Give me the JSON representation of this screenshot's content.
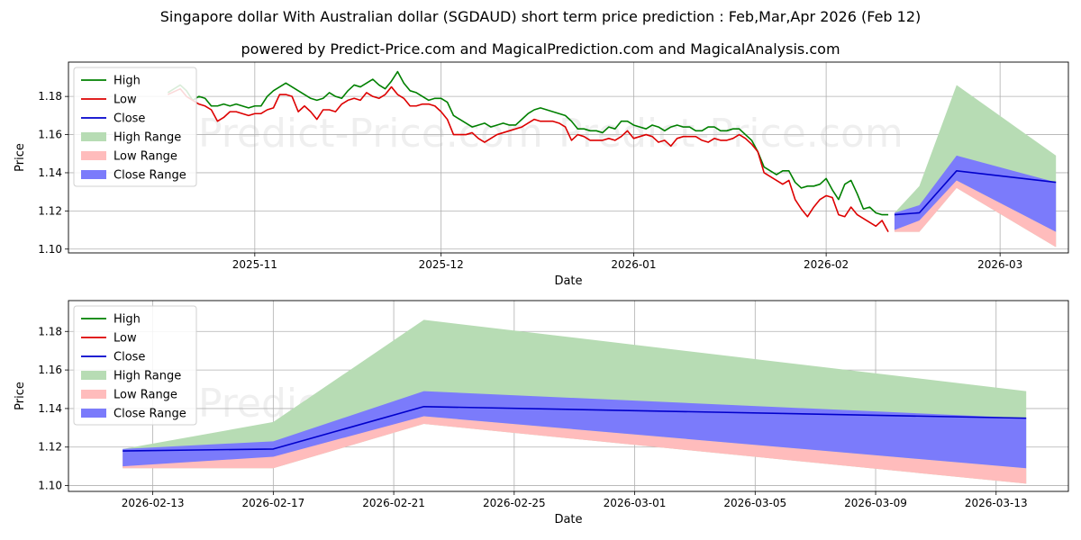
{
  "title": "Singapore dollar With Australian dollar (SGDAUD) short term price prediction : Feb,Mar,Apr 2026 (Feb 12)",
  "subtitle": "powered by Predict-Price.com and MagicalPrediction.com and MagicalAnalysis.com",
  "watermark": "Predict-Price.com",
  "colors": {
    "high": "#008000",
    "low": "#dd0000",
    "close": "#0000cc",
    "high_range": "#b7dcb4",
    "low_range": "#ffbcbc",
    "close_range": "#7b7bfb"
  },
  "chart_data": [
    {
      "type": "line",
      "name": "top",
      "xlabel": "Date",
      "ylabel": "Price",
      "ylim": [
        1.098,
        1.198
      ],
      "xlim": [
        0,
        161
      ],
      "x_ticks": [
        {
          "x": 30,
          "label": "2025-11"
        },
        {
          "x": 60,
          "label": "2025-12"
        },
        {
          "x": 91,
          "label": "2026-01"
        },
        {
          "x": 122,
          "label": "2026-02"
        },
        {
          "x": 150,
          "label": "2026-03"
        }
      ],
      "y_ticks": [
        1.1,
        1.12,
        1.14,
        1.16,
        1.18
      ],
      "y_tick_labels": [
        "1.10",
        "1.12",
        "1.14",
        "1.16",
        "1.18"
      ],
      "grid": true,
      "legend": {
        "position": "top-left",
        "entries": [
          {
            "label": "High",
            "kind": "line",
            "color": "high"
          },
          {
            "label": "Low",
            "kind": "line",
            "color": "low"
          },
          {
            "label": "Close",
            "kind": "line",
            "color": "close"
          },
          {
            "label": "High Range",
            "kind": "patch",
            "color": "high_range"
          },
          {
            "label": "Low Range",
            "kind": "patch",
            "color": "low_range"
          },
          {
            "label": "Close Range",
            "kind": "patch",
            "color": "close_range"
          }
        ]
      },
      "high": {
        "x": [
          16,
          18,
          19,
          20,
          21,
          22,
          23,
          24,
          25,
          26,
          27,
          28,
          29,
          30,
          31,
          32,
          33,
          34,
          35,
          36,
          37,
          38,
          39,
          40,
          41,
          42,
          43,
          44,
          45,
          46,
          47,
          48,
          49,
          50,
          51,
          52,
          53,
          54,
          55,
          56,
          57,
          58,
          59,
          60,
          61,
          62,
          63,
          64,
          65,
          66,
          67,
          68,
          69,
          70,
          71,
          72,
          73,
          74,
          75,
          76,
          77,
          78,
          79,
          80,
          81,
          82,
          83,
          84,
          85,
          86,
          87,
          88,
          89,
          90,
          91,
          92,
          93,
          94,
          95,
          96,
          97,
          98,
          99,
          100,
          101,
          102,
          103,
          104,
          105,
          106,
          107,
          108,
          109,
          110,
          111,
          112,
          113,
          114,
          115,
          116,
          117,
          118,
          119,
          120,
          121,
          122,
          123,
          124,
          125,
          126,
          127,
          128,
          129,
          130,
          131,
          132
        ],
        "y": [
          1.182,
          1.186,
          1.183,
          1.178,
          1.18,
          1.179,
          1.175,
          1.175,
          1.176,
          1.175,
          1.176,
          1.175,
          1.174,
          1.175,
          1.175,
          1.18,
          1.183,
          1.185,
          1.187,
          1.185,
          1.183,
          1.181,
          1.179,
          1.178,
          1.179,
          1.182,
          1.18,
          1.179,
          1.183,
          1.186,
          1.185,
          1.187,
          1.189,
          1.186,
          1.184,
          1.188,
          1.193,
          1.187,
          1.183,
          1.182,
          1.18,
          1.178,
          1.179,
          1.179,
          1.177,
          1.17,
          1.168,
          1.166,
          1.164,
          1.165,
          1.166,
          1.164,
          1.165,
          1.166,
          1.165,
          1.165,
          1.168,
          1.171,
          1.173,
          1.174,
          1.173,
          1.172,
          1.171,
          1.17,
          1.167,
          1.163,
          1.163,
          1.162,
          1.162,
          1.161,
          1.164,
          1.163,
          1.167,
          1.167,
          1.165,
          1.164,
          1.163,
          1.165,
          1.164,
          1.162,
          1.164,
          1.165,
          1.164,
          1.164,
          1.162,
          1.162,
          1.164,
          1.164,
          1.162,
          1.162,
          1.163,
          1.163,
          1.16,
          1.157,
          1.151,
          1.143,
          1.141,
          1.139,
          1.141,
          1.141,
          1.135,
          1.132,
          1.133,
          1.133,
          1.134,
          1.137,
          1.131,
          1.126,
          1.134,
          1.136,
          1.129,
          1.121,
          1.122,
          1.119,
          1.118,
          1.118
        ]
      },
      "low": {
        "x": [
          16,
          18,
          19,
          20,
          21,
          22,
          23,
          24,
          25,
          26,
          27,
          28,
          29,
          30,
          31,
          32,
          33,
          34,
          35,
          36,
          37,
          38,
          39,
          40,
          41,
          42,
          43,
          44,
          45,
          46,
          47,
          48,
          49,
          50,
          51,
          52,
          53,
          54,
          55,
          56,
          57,
          58,
          59,
          60,
          61,
          62,
          63,
          64,
          65,
          66,
          67,
          68,
          69,
          70,
          71,
          72,
          73,
          74,
          75,
          76,
          77,
          78,
          79,
          80,
          81,
          82,
          83,
          84,
          85,
          86,
          87,
          88,
          89,
          90,
          91,
          92,
          93,
          94,
          95,
          96,
          97,
          98,
          99,
          100,
          101,
          102,
          103,
          104,
          105,
          106,
          107,
          108,
          109,
          110,
          111,
          112,
          113,
          114,
          115,
          116,
          117,
          118,
          119,
          120,
          121,
          122,
          123,
          124,
          125,
          126,
          127,
          128,
          129,
          130,
          131,
          132
        ],
        "y": [
          1.181,
          1.184,
          1.18,
          1.178,
          1.176,
          1.175,
          1.173,
          1.167,
          1.169,
          1.172,
          1.172,
          1.171,
          1.17,
          1.171,
          1.171,
          1.173,
          1.174,
          1.181,
          1.181,
          1.18,
          1.172,
          1.175,
          1.172,
          1.168,
          1.173,
          1.173,
          1.172,
          1.176,
          1.178,
          1.179,
          1.178,
          1.182,
          1.18,
          1.179,
          1.181,
          1.185,
          1.181,
          1.179,
          1.175,
          1.175,
          1.176,
          1.176,
          1.175,
          1.172,
          1.168,
          1.16,
          1.16,
          1.16,
          1.161,
          1.158,
          1.156,
          1.158,
          1.16,
          1.161,
          1.162,
          1.163,
          1.164,
          1.166,
          1.168,
          1.167,
          1.167,
          1.167,
          1.166,
          1.164,
          1.157,
          1.16,
          1.159,
          1.157,
          1.157,
          1.157,
          1.158,
          1.157,
          1.159,
          1.162,
          1.158,
          1.159,
          1.16,
          1.159,
          1.156,
          1.157,
          1.154,
          1.158,
          1.159,
          1.159,
          1.159,
          1.157,
          1.156,
          1.158,
          1.157,
          1.157,
          1.158,
          1.16,
          1.158,
          1.155,
          1.151,
          1.14,
          1.138,
          1.136,
          1.134,
          1.136,
          1.126,
          1.121,
          1.117,
          1.122,
          1.126,
          1.128,
          1.127,
          1.118,
          1.117,
          1.122,
          1.118,
          1.116,
          1.114,
          1.112,
          1.115,
          1.109
        ]
      },
      "forecast_x": [
        133,
        137,
        143,
        159
      ],
      "forecast_dates": [
        "2026-02-12",
        "2026-02-17",
        "2026-02-22",
        "2026-03-14"
      ],
      "high_range": {
        "upper": [
          1.119,
          1.133,
          1.186,
          1.149
        ],
        "lower": [
          1.109,
          1.109,
          1.132,
          1.101
        ]
      },
      "low_range": {
        "upper": [
          1.118,
          1.119,
          1.136,
          1.109
        ],
        "lower": [
          1.109,
          1.109,
          1.132,
          1.101
        ]
      },
      "close_range": {
        "upper": [
          1.119,
          1.123,
          1.149,
          1.135
        ],
        "lower": [
          1.11,
          1.115,
          1.136,
          1.109
        ]
      },
      "close": {
        "x": [
          133,
          137,
          143,
          159
        ],
        "y": [
          1.118,
          1.119,
          1.141,
          1.135
        ]
      }
    },
    {
      "type": "area",
      "name": "bottom",
      "xlabel": "Date",
      "ylabel": "Price",
      "ylim": [
        1.097,
        1.196
      ],
      "xlim": [
        -1.8,
        31.4
      ],
      "x_ticks": [
        {
          "x": 1,
          "label": "2026-02-13"
        },
        {
          "x": 5,
          "label": "2026-02-17"
        },
        {
          "x": 9,
          "label": "2026-02-21"
        },
        {
          "x": 13,
          "label": "2026-02-25"
        },
        {
          "x": 17,
          "label": "2026-03-01"
        },
        {
          "x": 21,
          "label": "2026-03-05"
        },
        {
          "x": 25,
          "label": "2026-03-09"
        },
        {
          "x": 29,
          "label": "2026-03-13"
        }
      ],
      "y_ticks": [
        1.1,
        1.12,
        1.14,
        1.16,
        1.18
      ],
      "y_tick_labels": [
        "1.10",
        "1.12",
        "1.14",
        "1.16",
        "1.18"
      ],
      "grid": true,
      "legend": {
        "position": "top-left",
        "entries": [
          {
            "label": "High",
            "kind": "line",
            "color": "high"
          },
          {
            "label": "Low",
            "kind": "line",
            "color": "low"
          },
          {
            "label": "Close",
            "kind": "line",
            "color": "close"
          },
          {
            "label": "High Range",
            "kind": "patch",
            "color": "high_range"
          },
          {
            "label": "Low Range",
            "kind": "patch",
            "color": "low_range"
          },
          {
            "label": "Close Range",
            "kind": "patch",
            "color": "close_range"
          }
        ]
      },
      "forecast_x": [
        0,
        5,
        10,
        30
      ],
      "forecast_dates": [
        "2026-02-12",
        "2026-02-17",
        "2026-02-22",
        "2026-03-14"
      ],
      "high_range": {
        "upper": [
          1.119,
          1.133,
          1.186,
          1.149
        ],
        "lower": [
          1.109,
          1.109,
          1.132,
          1.101
        ]
      },
      "low_range": {
        "upper": [
          1.118,
          1.119,
          1.136,
          1.109
        ],
        "lower": [
          1.109,
          1.109,
          1.132,
          1.101
        ]
      },
      "close_range": {
        "upper": [
          1.119,
          1.123,
          1.149,
          1.135
        ],
        "lower": [
          1.11,
          1.115,
          1.136,
          1.109
        ]
      },
      "close": {
        "x": [
          0,
          5,
          10,
          30
        ],
        "y": [
          1.118,
          1.119,
          1.141,
          1.135
        ]
      }
    }
  ]
}
